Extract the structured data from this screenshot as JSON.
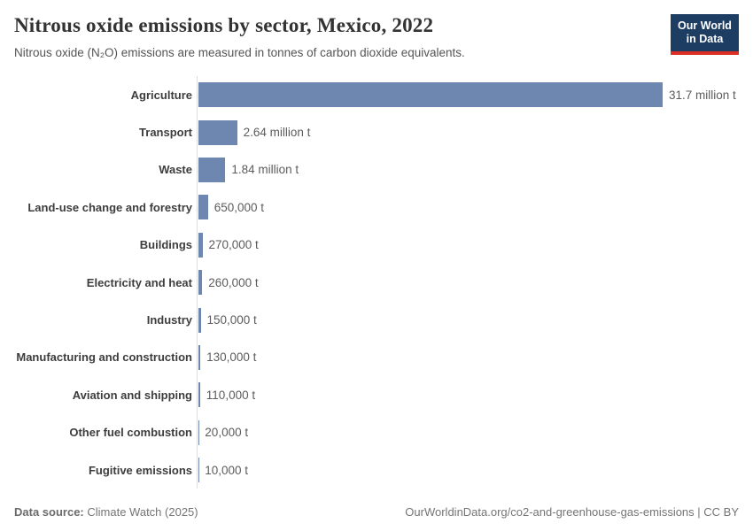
{
  "header": {
    "title": "Nitrous oxide emissions by sector, Mexico, 2022",
    "subtitle": "Nitrous oxide (N₂O) emissions are measured in tonnes of carbon dioxide equivalents.",
    "logo": {
      "line1": "Our World",
      "line2": "in Data",
      "bg_color": "#1d3d63",
      "accent_color": "#dc2f25"
    }
  },
  "chart_data": {
    "type": "bar",
    "orientation": "horizontal",
    "title": "Nitrous oxide emissions by sector, Mexico, 2022",
    "unit": "tonnes of carbon dioxide equivalents",
    "categories": [
      "Agriculture",
      "Transport",
      "Waste",
      "Land-use change and forestry",
      "Buildings",
      "Electricity and heat",
      "Industry",
      "Manufacturing and construction",
      "Aviation and shipping",
      "Other fuel combustion",
      "Fugitive emissions"
    ],
    "values": [
      31700000,
      2640000,
      1840000,
      650000,
      270000,
      260000,
      150000,
      130000,
      110000,
      20000,
      10000
    ],
    "value_labels": [
      "31.7 million t",
      "2.64 million t",
      "1.84 million t",
      "650,000 t",
      "270,000 t",
      "260,000 t",
      "150,000 t",
      "130,000 t",
      "110,000 t",
      "20,000 t",
      "10,000 t"
    ],
    "bar_color": "#6d87b0",
    "xlim": [
      0,
      31700000
    ],
    "grid": false,
    "legend": false,
    "axis_line_color": "#dcdcdc"
  },
  "footer": {
    "source_label": "Data source:",
    "source_value": "Climate Watch (2025)",
    "credit": "OurWorldinData.org/co2-and-greenhouse-gas-emissions | CC BY"
  }
}
